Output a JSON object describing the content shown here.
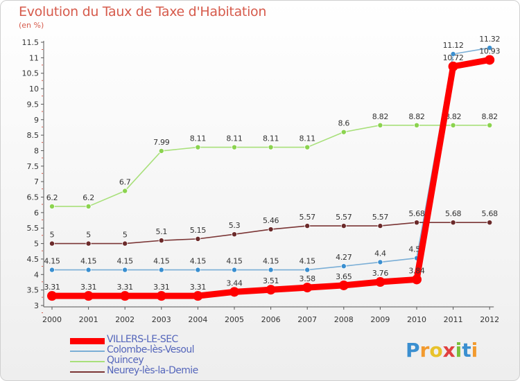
{
  "chart_data": {
    "type": "line",
    "title": "Evolution du Taux de Taxe d'Habitation",
    "subtitle": "(en %)",
    "x": [
      "2000",
      "2001",
      "2002",
      "2003",
      "2004",
      "2005",
      "2006",
      "2007",
      "2008",
      "2009",
      "2010",
      "2011",
      "2012"
    ],
    "ylim": [
      3,
      11.5
    ],
    "yticks": [
      "3",
      "3.5",
      "4",
      "4.5",
      "5",
      "5.5",
      "6",
      "6.5",
      "7",
      "7.5",
      "8",
      "8.5",
      "9",
      "9.5",
      "10",
      "10.5",
      "11",
      "11.5"
    ],
    "grid": false,
    "legend_position": "bottom-left",
    "series": [
      {
        "name": "VILLERS-LE-SEC",
        "color": "#ff0000",
        "values": [
          3.31,
          3.31,
          3.31,
          3.31,
          3.31,
          3.44,
          3.51,
          3.58,
          3.65,
          3.76,
          3.84,
          10.72,
          10.93
        ],
        "labels": [
          "3.31",
          "3.31",
          "3.31",
          "3.31",
          "3.31",
          "3.44",
          "3.51",
          "3.58",
          "3.65",
          "3.76",
          "3.84",
          "10.72",
          "10.93"
        ]
      },
      {
        "name": "Colombe-lès-Vesoul",
        "color": "#7aaed6",
        "marker": "#3a8fd0",
        "values": [
          4.15,
          4.15,
          4.15,
          4.15,
          4.15,
          4.15,
          4.15,
          4.15,
          4.27,
          4.4,
          4.53,
          11.12,
          11.32
        ],
        "labels": [
          "4.15",
          "4.15",
          "4.15",
          "4.15",
          "4.15",
          "4.15",
          "4.15",
          "4.15",
          "4.27",
          "4.4",
          "4.53",
          "11.12",
          "11.32"
        ]
      },
      {
        "name": "Quincey",
        "color": "#a8e07a",
        "marker": "#8bd34f",
        "values": [
          6.2,
          6.2,
          6.7,
          7.99,
          8.11,
          8.11,
          8.11,
          8.11,
          8.6,
          8.82,
          8.82,
          8.82,
          8.82
        ],
        "labels": [
          "6.2",
          "6.2",
          "6.7",
          "7.99",
          "8.11",
          "8.11",
          "8.11",
          "8.11",
          "8.6",
          "8.82",
          "8.82",
          "8.82",
          "8.82"
        ]
      },
      {
        "name": "Neurey-lès-la-Demie",
        "color": "#7a3434",
        "marker": "#6b2a2a",
        "values": [
          5,
          5,
          5,
          5.1,
          5.15,
          5.3,
          5.46,
          5.57,
          5.57,
          5.57,
          5.68,
          5.68,
          5.68
        ],
        "labels": [
          "5",
          "5",
          "5",
          "5.1",
          "5.15",
          "5.3",
          "5.46",
          "5.57",
          "5.57",
          "5.57",
          "5.68",
          "5.68",
          "5.68"
        ]
      }
    ]
  },
  "logo": {
    "text": "Proxiti",
    "letters": [
      {
        "ch": "P",
        "color": "#3a8fd0"
      },
      {
        "ch": "r",
        "color": "#f29a2e"
      },
      {
        "ch": "o",
        "color": "#e8c22b"
      },
      {
        "ch": "x",
        "color": "#e04040"
      },
      {
        "ch": "i",
        "color": "#7bbf3a"
      },
      {
        "ch": "t",
        "color": "#3a8fd0"
      },
      {
        "ch": "i",
        "color": "#f29a2e"
      }
    ]
  }
}
